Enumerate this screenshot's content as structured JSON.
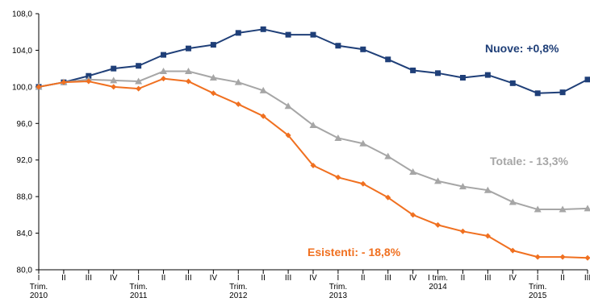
{
  "chart_data": {
    "type": "line",
    "title": "",
    "xlabel": "",
    "ylabel": "",
    "ylim": [
      80,
      108
    ],
    "yticks": [
      80,
      84,
      88,
      92,
      96,
      100,
      104,
      108
    ],
    "ytick_labels": [
      "80,0",
      "84,0",
      "88,0",
      "92,0",
      "96,0",
      "100,0",
      "104,0",
      "108,0"
    ],
    "grid": false,
    "categories": [
      "I Trim. 2010",
      "II",
      "III",
      "IV",
      "I Trim. 2011",
      "II",
      "III",
      "IV",
      "I Trim. 2012",
      "II",
      "III",
      "IV",
      "I Trim. 2013",
      "II",
      "III",
      "IV",
      "I trim. 2014",
      "II",
      "III",
      "IV",
      "I Trim. 2015",
      "II",
      "III"
    ],
    "x_labels": [
      [
        "I",
        "Trim.",
        "2010"
      ],
      [
        "II"
      ],
      [
        "III"
      ],
      [
        "IV"
      ],
      [
        "I",
        "Trim.",
        "2011"
      ],
      [
        "II"
      ],
      [
        "III"
      ],
      [
        "IV"
      ],
      [
        "I",
        "Trim.",
        "2012"
      ],
      [
        "II"
      ],
      [
        "III"
      ],
      [
        "IV"
      ],
      [
        "I",
        "Trim.",
        "2013"
      ],
      [
        "II"
      ],
      [
        "III"
      ],
      [
        "IV"
      ],
      [
        "I trim.",
        "2014"
      ],
      [
        "II"
      ],
      [
        "III"
      ],
      [
        "IV"
      ],
      [
        "I",
        "Trim.",
        "2015"
      ],
      [
        "II"
      ],
      [
        "III"
      ]
    ],
    "series": [
      {
        "name": "Nuove",
        "label": "Nuove: +0,8%",
        "color": "#1f3f78",
        "marker": "square",
        "values": [
          100.0,
          100.5,
          101.2,
          102.0,
          102.3,
          103.5,
          104.2,
          104.6,
          105.9,
          106.3,
          105.7,
          105.7,
          104.5,
          104.1,
          103.0,
          101.8,
          101.5,
          101.0,
          101.3,
          100.4,
          99.3,
          99.4,
          100.8
        ]
      },
      {
        "name": "Totale",
        "label": "Totale: - 13,3%",
        "color": "#a6a6a6",
        "marker": "triangle",
        "values": [
          100.0,
          100.5,
          100.8,
          100.7,
          100.6,
          101.7,
          101.7,
          101.0,
          100.5,
          99.6,
          97.9,
          95.8,
          94.4,
          93.8,
          92.4,
          90.7,
          89.7,
          89.1,
          88.7,
          87.4,
          86.6,
          86.6,
          86.7
        ]
      },
      {
        "name": "Esistenti",
        "label": "Esistenti: - 18,8%",
        "color": "#f07020",
        "marker": "diamond",
        "values": [
          100.0,
          100.5,
          100.6,
          100.0,
          99.8,
          100.9,
          100.6,
          99.3,
          98.1,
          96.8,
          94.7,
          91.4,
          90.1,
          89.4,
          87.9,
          86.0,
          84.9,
          84.2,
          83.7,
          82.1,
          81.4,
          81.4,
          81.3
        ]
      }
    ]
  }
}
